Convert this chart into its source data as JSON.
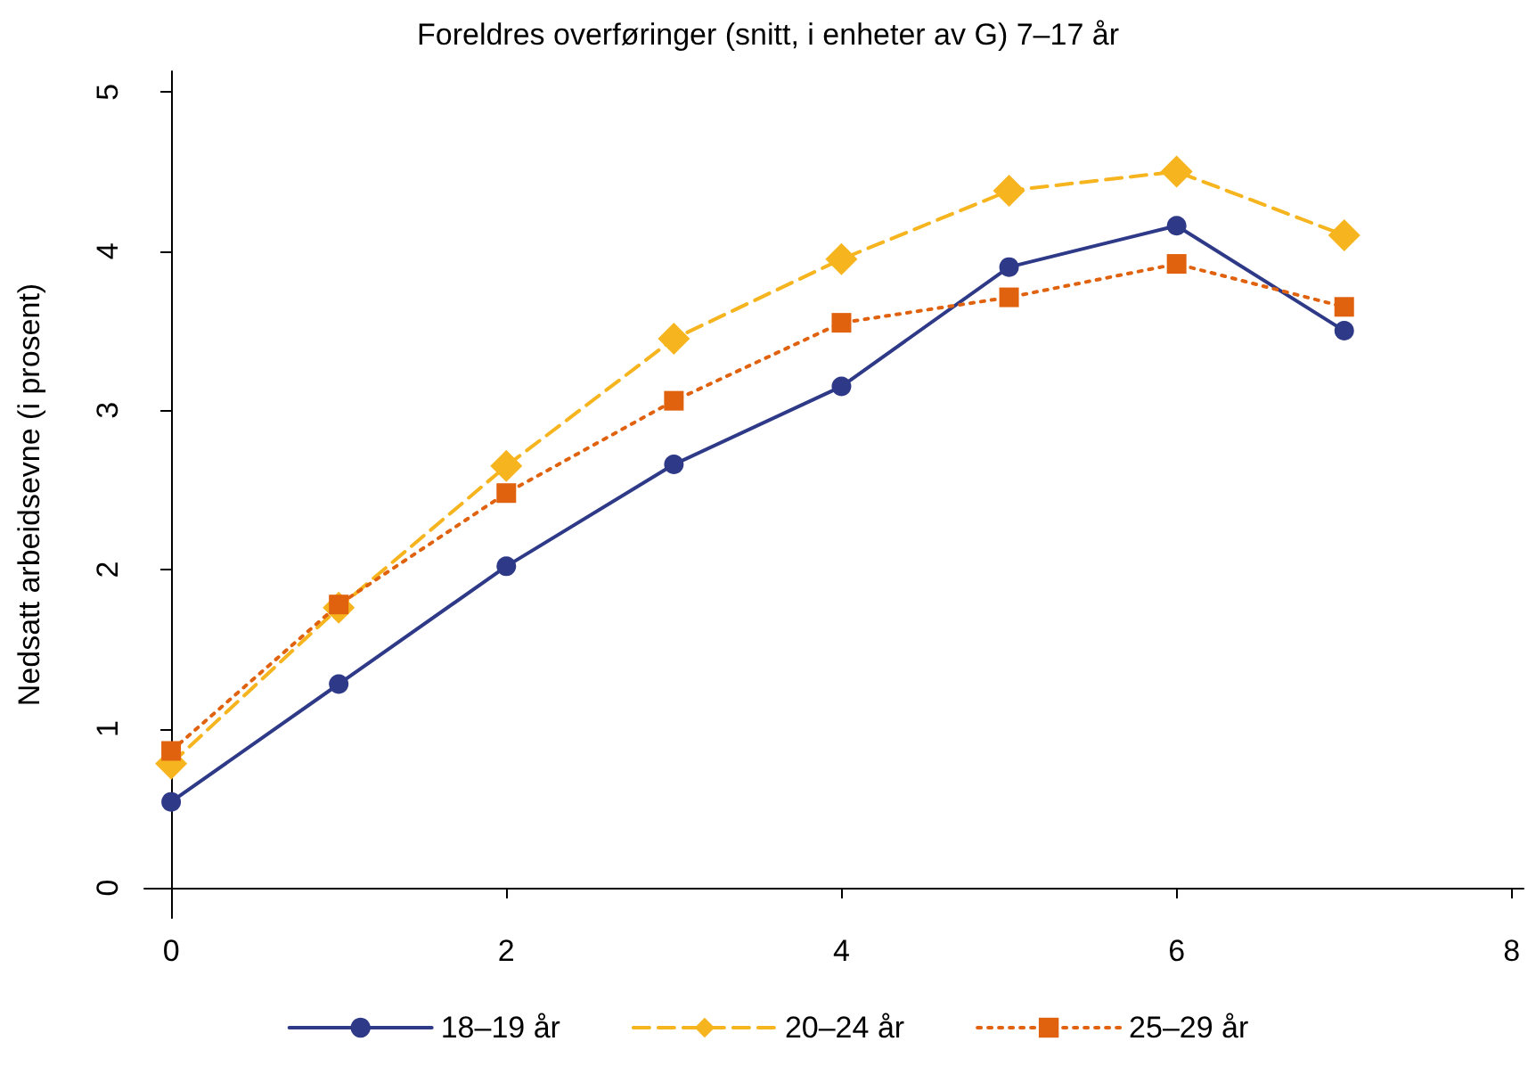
{
  "chart_data": {
    "type": "line",
    "title": "Foreldres overføringer (snitt, i enheter av G) 7–17 år",
    "ylabel": "Nedsatt arbeidsevne (i prosent)",
    "x": [
      0,
      1,
      2,
      3,
      4,
      5,
      6,
      7
    ],
    "series": [
      {
        "name": "18–19 år",
        "color": "#2e3a87",
        "values": [
          0.54,
          1.28,
          2.02,
          2.66,
          3.15,
          3.9,
          4.16,
          3.5
        ],
        "marker": "circle",
        "line_style": "solid"
      },
      {
        "name": "20–24 år",
        "color": "#f6b51f",
        "values": [
          0.78,
          1.76,
          2.65,
          3.45,
          3.95,
          4.38,
          4.5,
          4.1
        ],
        "marker": "diamond",
        "line_style": "dashed"
      },
      {
        "name": "25–29 år",
        "color": "#e0620f",
        "values": [
          0.86,
          1.78,
          2.48,
          3.06,
          3.55,
          3.71,
          3.92,
          3.65
        ],
        "marker": "square",
        "line_style": "dotted"
      }
    ],
    "xlim": [
      -0.16,
      8.07
    ],
    "xticks": [
      0,
      2,
      4,
      6,
      8
    ],
    "ylim": [
      -0.19,
      5.13
    ],
    "yticks": [
      0,
      1,
      2,
      3,
      4,
      5
    ],
    "grid": false,
    "legend": "bottom"
  }
}
